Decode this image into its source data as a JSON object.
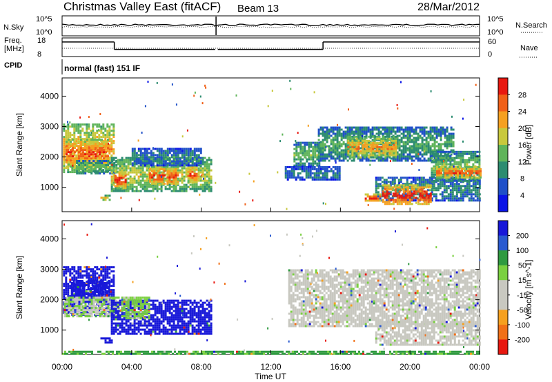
{
  "header": {
    "station": "Christmas Valley East (fitACF)",
    "beam": "Beam 13",
    "date": "28/Mar/2012"
  },
  "summary": {
    "nsky_label": "N.Sky",
    "nsky_ticks": [
      "10^5",
      "10^0"
    ],
    "nsearch_label": "N.Search",
    "nsearch_ticks": [
      "10^5",
      "10^0"
    ],
    "freq_label": "Freq.",
    "freq_unit": "[MHz]",
    "freq_ticks": [
      "18",
      "8"
    ],
    "nave_label": "Nave",
    "nave_ticks": [
      "60",
      "0"
    ],
    "cpid_label": "CPID",
    "cpid_value": "normal (fast) 151 IF",
    "freq_steps": [
      {
        "start": 0.0,
        "end": 3.0,
        "mhz": 16.8
      },
      {
        "start": 3.0,
        "end": 8.8,
        "mhz": 12.3
      },
      {
        "start": 8.95,
        "end": 15.0,
        "mhz": 12.3
      },
      {
        "start": 15.0,
        "end": 24.0,
        "mhz": 16.8
      }
    ]
  },
  "x_axis": {
    "label": "Time UT",
    "ticks": [
      "00:00",
      "04:00",
      "08:00",
      "12:00",
      "16:00",
      "20:00",
      "00:00"
    ],
    "range_hours": [
      0,
      24
    ]
  },
  "chart_data": [
    {
      "type": "heatmap",
      "parameter": "power",
      "ylabel": "Slant Range [km]",
      "yticks": [
        "1000",
        "2000",
        "3000",
        "4000"
      ],
      "ylim": [
        200,
        4600
      ],
      "colorbar_label": "Power [dB]",
      "colorbar_ticks": [
        "4",
        "8",
        "12",
        "16",
        "20",
        "24",
        "28"
      ],
      "colorbar_colors": [
        "#0a14e6",
        "#1f50c8",
        "#2c8c70",
        "#5fb45a",
        "#c8c83c",
        "#f5a020",
        "#f06018",
        "#e81810"
      ],
      "regions": [
        {
          "t0": 0.05,
          "t1": 3.0,
          "r0": 1500,
          "r1": 3100,
          "level": 0.72
        },
        {
          "t0": 0.2,
          "t1": 2.6,
          "r0": 1700,
          "r1": 2600,
          "level": 0.88
        },
        {
          "t0": 0.8,
          "t1": 3.1,
          "r0": 1450,
          "r1": 1900,
          "level": 0.45
        },
        {
          "t0": 2.8,
          "t1": 8.6,
          "r0": 850,
          "r1": 2000,
          "level": 0.58
        },
        {
          "t0": 3.0,
          "t1": 3.6,
          "r0": 1000,
          "r1": 1550,
          "level": 0.95
        },
        {
          "t0": 5.0,
          "t1": 5.9,
          "r0": 1100,
          "r1": 1700,
          "level": 0.93
        },
        {
          "t0": 6.0,
          "t1": 6.7,
          "r0": 1100,
          "r1": 1700,
          "level": 0.9
        },
        {
          "t0": 7.2,
          "t1": 7.7,
          "r0": 1150,
          "r1": 1750,
          "level": 0.86
        },
        {
          "t0": 4.0,
          "t1": 8.0,
          "r0": 1750,
          "r1": 2300,
          "level": 0.3
        },
        {
          "t0": 2.2,
          "t1": 2.7,
          "r0": 580,
          "r1": 760,
          "level": 0.65
        },
        {
          "t0": 13.3,
          "t1": 14.8,
          "r0": 1700,
          "r1": 2500,
          "level": 0.45
        },
        {
          "t0": 14.7,
          "t1": 22.5,
          "r0": 1900,
          "r1": 3000,
          "level": 0.4
        },
        {
          "t0": 16.4,
          "t1": 19.2,
          "r0": 2000,
          "r1": 2700,
          "level": 0.74
        },
        {
          "t0": 12.8,
          "t1": 16.0,
          "r0": 1250,
          "r1": 1700,
          "level": 0.28
        },
        {
          "t0": 18.0,
          "t1": 24.0,
          "r0": 600,
          "r1": 1350,
          "level": 0.33
        },
        {
          "t0": 18.4,
          "t1": 21.2,
          "r0": 430,
          "r1": 1100,
          "level": 0.98
        },
        {
          "t0": 21.2,
          "t1": 24.0,
          "r0": 1200,
          "r1": 2200,
          "level": 0.48
        },
        {
          "t0": 21.5,
          "t1": 24.0,
          "r0": 1350,
          "r1": 1700,
          "level": 0.9
        },
        {
          "t0": 17.4,
          "t1": 18.3,
          "r0": 550,
          "r1": 800,
          "level": 0.96
        }
      ]
    },
    {
      "type": "heatmap",
      "parameter": "velocity",
      "ylabel": "Slant Range [km]",
      "yticks": [
        "1000",
        "2000",
        "3000",
        "4000"
      ],
      "ylim": [
        200,
        4600
      ],
      "colorbar_label": "Velocity [m s^-1]",
      "colorbar_ticks": [
        "200",
        "100",
        "50",
        "15",
        "-15",
        "-50",
        "-100",
        "-200"
      ],
      "colorbar_colors": [
        "#1818d8",
        "#2a5ad0",
        "#2f9a40",
        "#7ad040",
        "#c8c8c0",
        "#c8c8c0",
        "#f5a020",
        "#f07018",
        "#e81810"
      ],
      "regions": [
        {
          "t0": 0.05,
          "t1": 3.0,
          "r0": 1500,
          "r1": 3100,
          "level": 0.0
        },
        {
          "t0": 0.5,
          "t1": 2.7,
          "r0": 1950,
          "r1": 2650,
          "level": 0.05
        },
        {
          "t0": 0.1,
          "t1": 3.2,
          "r0": 1450,
          "r1": 2100,
          "level": 0.45
        },
        {
          "t0": 2.8,
          "t1": 8.6,
          "r0": 900,
          "r1": 2000,
          "level": 0.05
        },
        {
          "t0": 3.4,
          "t1": 5.0,
          "r0": 1400,
          "r1": 2100,
          "level": 0.4
        },
        {
          "t0": 2.2,
          "t1": 2.8,
          "r0": 580,
          "r1": 760,
          "level": 0.05
        },
        {
          "t0": 13.0,
          "t1": 24.0,
          "r0": 1100,
          "r1": 3000,
          "level": 0.5
        },
        {
          "t0": 18.0,
          "t1": 24.0,
          "r0": 500,
          "r1": 1300,
          "level": 0.5
        },
        {
          "t0": 0.0,
          "t1": 24.0,
          "r0": 200,
          "r1": 320,
          "level": 0.3
        }
      ]
    }
  ]
}
